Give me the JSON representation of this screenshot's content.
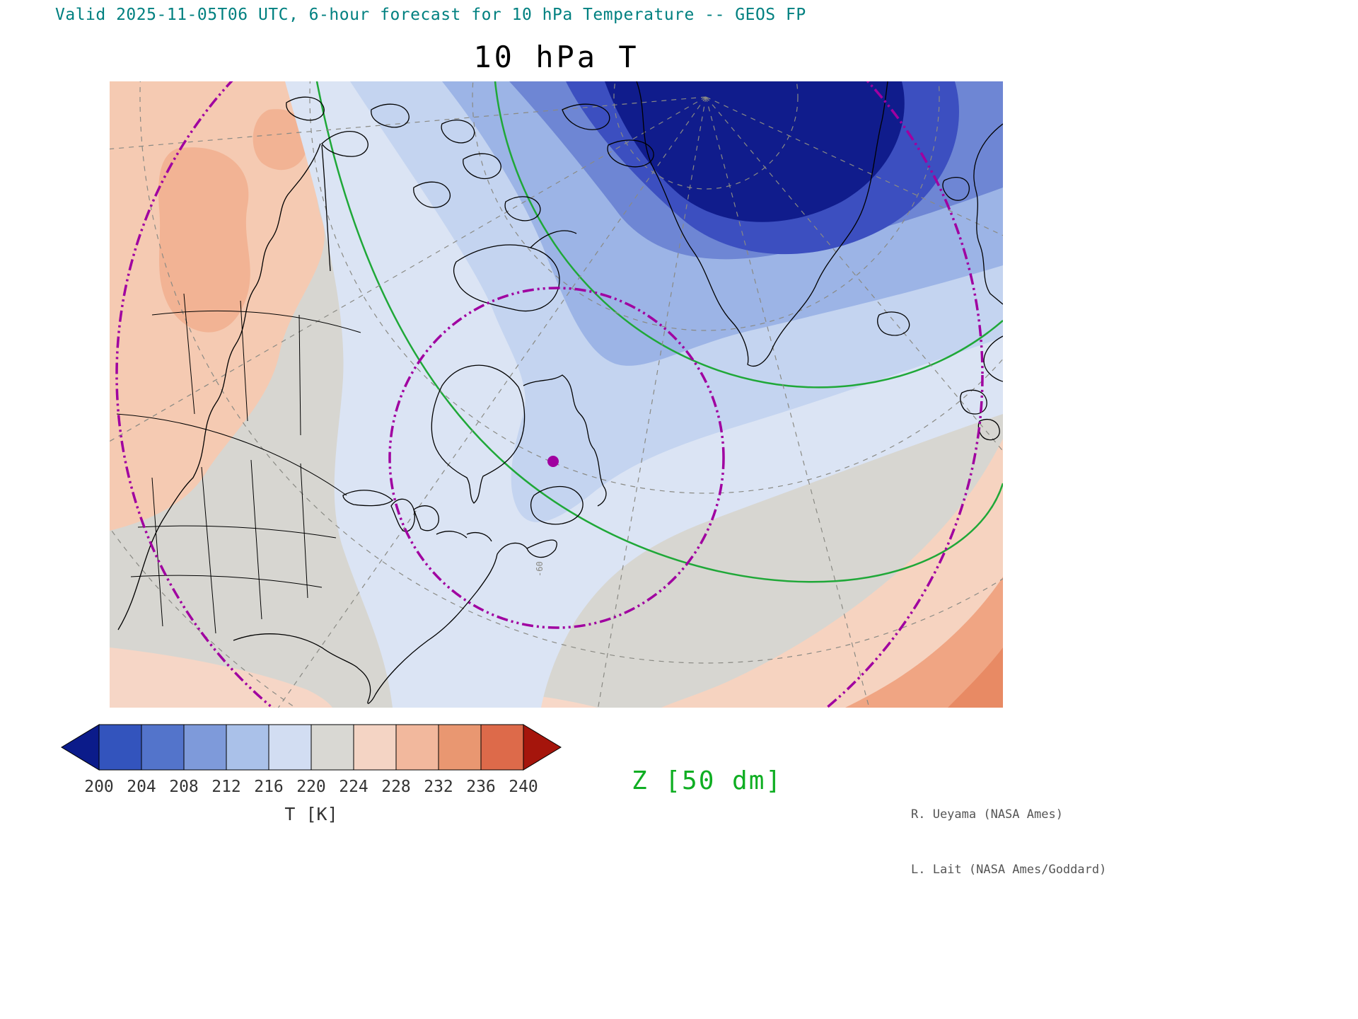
{
  "header": {
    "valid_line": "Valid 2025-11-05T06 UTC, 6-hour forecast for 10 hPa Temperature -- GEOS FP"
  },
  "title": "10 hPa T",
  "colorbar": {
    "tick_labels": [
      "200",
      "204",
      "208",
      "212",
      "216",
      "220",
      "224",
      "228",
      "232",
      "236",
      "240"
    ],
    "unit_label": "T [K]",
    "segment_colors": [
      "#3354bd",
      "#5374cb",
      "#7e9ada",
      "#aac1e9",
      "#d2ddf2",
      "#d9d8d3",
      "#f4d4c4",
      "#f2b89d",
      "#e99771",
      "#dd6a4a"
    ],
    "left_arrow_color": "#0b1b8a",
    "right_arrow_color": "#a5150c"
  },
  "contour_legend": {
    "label": "Z [50 dm]",
    "color": "#0fae22"
  },
  "map": {
    "graticule_label": "-60",
    "vortex_edge_color": "#a000a0",
    "height_contour_color": "#1fa838"
  },
  "credits": {
    "line1": "R. Ueyama (NASA Ames)",
    "line2": "L. Lait (NASA Ames/Goddard)"
  },
  "chart_data": {
    "type": "heatmap",
    "title": "10 hPa T",
    "description": "Northern-hemisphere polar stereographic weather map of 10 hPa temperature (filled contours) with geopotential height contours and polar vortex edge markers",
    "valid": "2025-11-05T06 UTC",
    "forecast": "6-hour forecast",
    "model": "GEOS FP",
    "shaded_field": "10 hPa Temperature",
    "shading_units": "K",
    "colorbar_ticks": [
      200,
      204,
      208,
      212,
      216,
      220,
      224,
      228,
      232,
      236,
      240
    ],
    "colorbar_range": [
      200,
      240
    ],
    "colorbar_interval": 4,
    "contour_field": "Z [50 dm]",
    "overlays": [
      "green geopotential height contours (50 dm interval)",
      "purple dash-dot vortex edge circles",
      "purple vortex center dot",
      "dashed lat/lon graticule",
      "black coastlines and state borders"
    ],
    "pattern": "Cold polar vortex core (<200 K, dark navy) over the Arctic north of Greenland; cold blues extend over eastern Canada, Greenland and the North Atlantic; warm anomalies (224-232 K, salmon) over Alaska/western Canada and the subtropical Atlantic"
  }
}
